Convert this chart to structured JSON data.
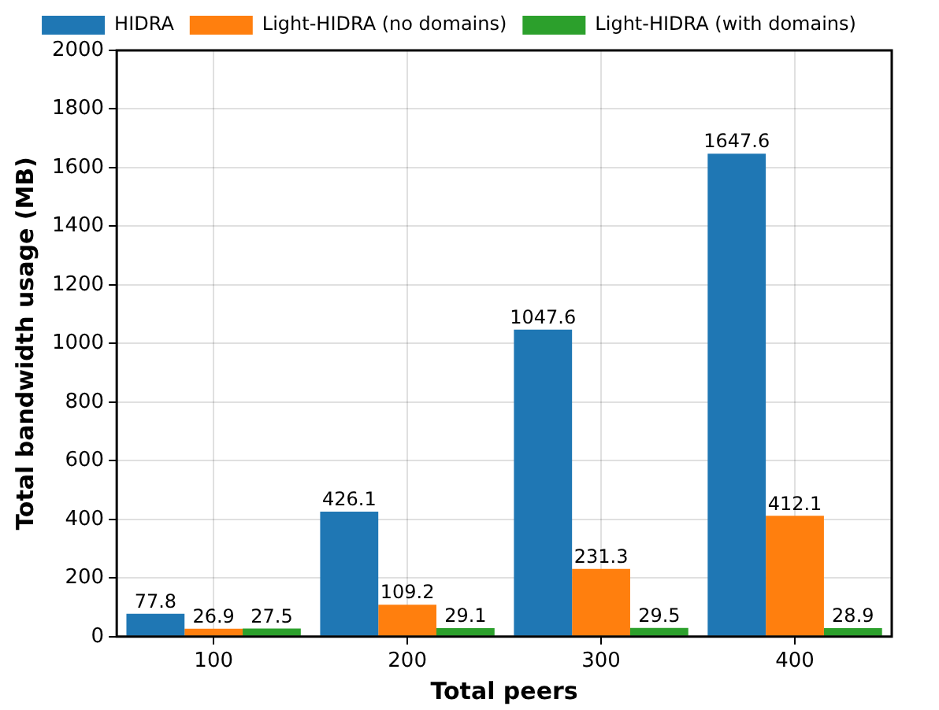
{
  "chart_data": {
    "type": "bar",
    "xlabel": "Total peers",
    "ylabel": "Total bandwidth usage (MB)",
    "categories": [
      "100",
      "200",
      "300",
      "400"
    ],
    "series": [
      {
        "name": "HIDRA",
        "color": "#1f77b4",
        "values": [
          77.8,
          426.1,
          1047.6,
          1647.6
        ]
      },
      {
        "name": "Light-HIDRA (no domains)",
        "color": "#ff7f0e",
        "values": [
          26.9,
          109.2,
          231.3,
          412.1
        ]
      },
      {
        "name": "Light-HIDRA (with domains)",
        "color": "#2ca02c",
        "values": [
          27.5,
          29.1,
          29.5,
          28.9
        ]
      }
    ],
    "ylim": [
      0,
      2000
    ],
    "yticks": [
      0,
      200,
      400,
      600,
      800,
      1000,
      1200,
      1400,
      1600,
      1800,
      2000
    ],
    "grid": true,
    "legend": "top",
    "data_labels": true
  }
}
